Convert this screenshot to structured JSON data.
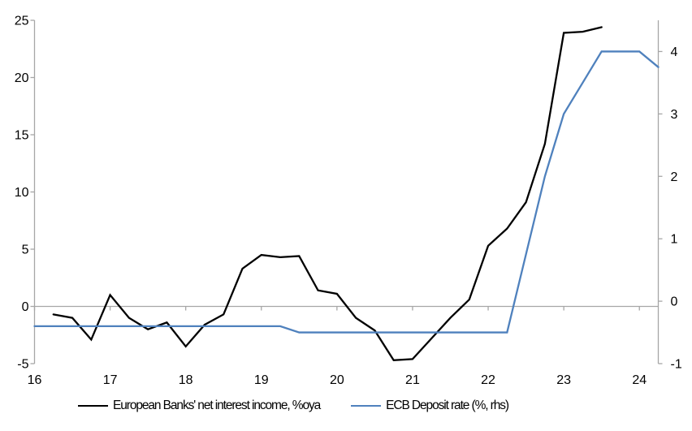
{
  "chart_data": {
    "type": "line",
    "dual_axis": true,
    "grid": "off",
    "background_color": "#ffffff",
    "axis_color": "#a6a6a6",
    "x": [
      "16Q1",
      "16Q2",
      "16Q3",
      "16Q4",
      "17Q1",
      "17Q2",
      "17Q3",
      "17Q4",
      "18Q1",
      "18Q2",
      "18Q3",
      "18Q4",
      "19Q1",
      "19Q2",
      "19Q3",
      "19Q4",
      "20Q1",
      "20Q2",
      "20Q3",
      "20Q4",
      "21Q1",
      "21Q2",
      "21Q3",
      "21Q4",
      "22Q1",
      "22Q2",
      "22Q3",
      "22Q4",
      "23Q1",
      "23Q2",
      "23Q3",
      "23Q4",
      "24Q1",
      "24Q2"
    ],
    "x_tick_labels": [
      "16",
      "17",
      "18",
      "19",
      "20",
      "21",
      "22",
      "23",
      "24"
    ],
    "x_ticks_every_n_points": 4,
    "left_axis": {
      "min": -5,
      "max": 25,
      "ticks": [
        -5,
        0,
        5,
        10,
        15,
        20,
        25
      ]
    },
    "right_axis": {
      "min": -1,
      "max": 4.5,
      "ticks": [
        -1,
        0,
        1,
        2,
        3,
        4
      ]
    },
    "zero_line_on_left_axis": 0,
    "series": [
      {
        "name": "European Banks' net interest income, %oya",
        "color": "#000000",
        "axis": "left",
        "start_index": 1,
        "values": [
          -0.7,
          -1.0,
          -2.9,
          1.0,
          -1.0,
          -2.0,
          -1.4,
          -3.5,
          -1.6,
          -0.7,
          3.3,
          4.5,
          4.3,
          4.4,
          1.4,
          1.1,
          -1.0,
          -2.1,
          -4.7,
          -4.6,
          -2.8,
          -1.0,
          0.6,
          5.3,
          6.8,
          9.1,
          14.2,
          23.9,
          24.0,
          24.4
        ]
      },
      {
        "name": "ECB Deposit rate (%, rhs)",
        "color": "#4f81bd",
        "axis": "right",
        "start_index": 0,
        "values": [
          -0.4,
          -0.4,
          -0.4,
          -0.4,
          -0.4,
          -0.4,
          -0.4,
          -0.4,
          -0.4,
          -0.4,
          -0.4,
          -0.4,
          -0.4,
          -0.4,
          -0.5,
          -0.5,
          -0.5,
          -0.5,
          -0.5,
          -0.5,
          -0.5,
          -0.5,
          -0.5,
          -0.5,
          -0.5,
          -0.5,
          0.75,
          2.0,
          3.0,
          3.5,
          4.0,
          4.0,
          4.0,
          3.75
        ]
      }
    ],
    "legend": {
      "position": "bottom"
    }
  }
}
